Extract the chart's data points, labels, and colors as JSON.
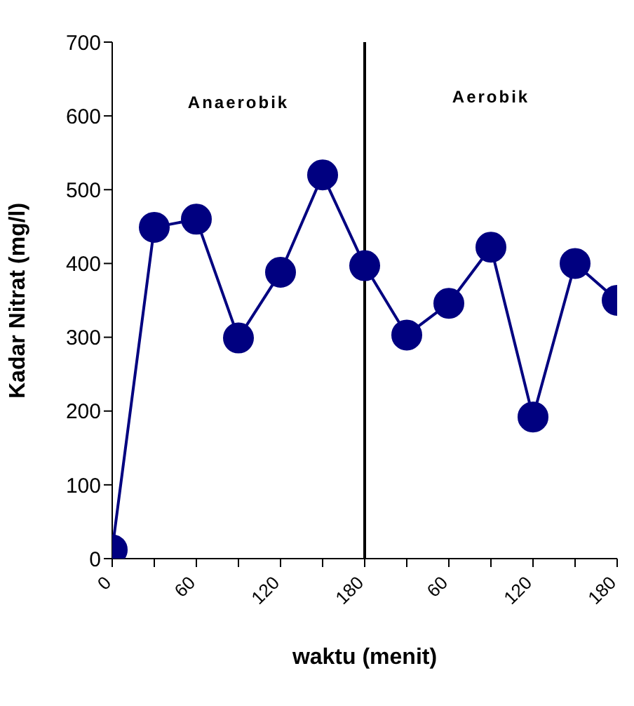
{
  "chart_data": {
    "type": "line",
    "xlabel": "waktu (menit)",
    "ylabel": "Kadar Nitrat (mg/l)",
    "categories": [
      "0",
      null,
      "60",
      null,
      "120",
      null,
      "180",
      null,
      "60",
      null,
      "120",
      null,
      "180"
    ],
    "series": [
      {
        "color": "#000080",
        "values": [
          12,
          449,
          460,
          299,
          388,
          520,
          397,
          303,
          346,
          422,
          192,
          400,
          350
        ]
      }
    ],
    "ylim": [
      0,
      700
    ],
    "yticks": [
      0,
      100,
      200,
      300,
      400,
      500,
      600,
      700
    ],
    "ref_lines": [
      {
        "axis": "x",
        "value": "180",
        "color": "#000000"
      }
    ],
    "annotations": [
      "Anaerobik",
      "Aerobik"
    ],
    "marker": "circle",
    "line_style": "solid",
    "legend": false
  }
}
